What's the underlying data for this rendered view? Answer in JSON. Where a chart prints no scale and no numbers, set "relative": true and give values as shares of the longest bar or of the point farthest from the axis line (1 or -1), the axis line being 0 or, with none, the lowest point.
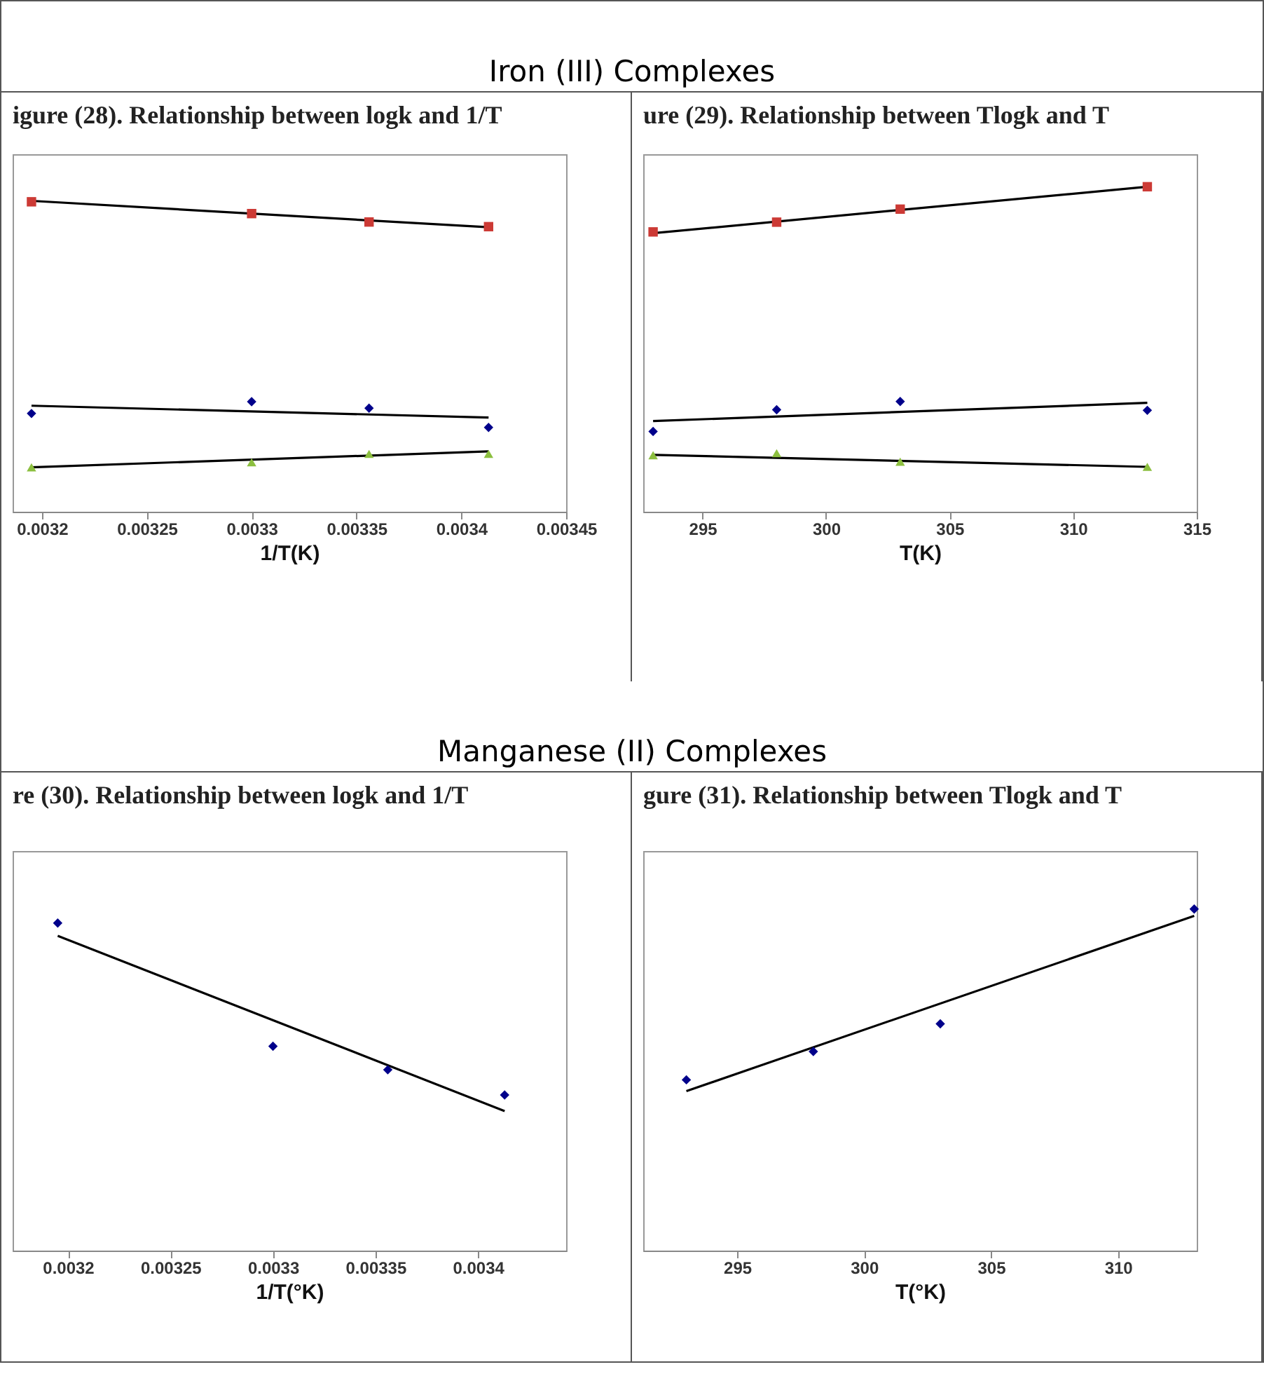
{
  "chart_data": [
    {
      "type": "scatter",
      "title": "igure (28). Relationship between logk and 1/T",
      "annotations": [
        "Iron (III) Complexes"
      ],
      "xlabel": "1/T(K)",
      "relative": true,
      "xlim": [
        0.003186,
        0.00345
      ],
      "xticks": [
        0.0032,
        0.00325,
        0.0033,
        0.00335,
        0.0034,
        0.00345
      ],
      "x": [
        0.003195,
        0.0033,
        0.003356,
        0.003413
      ],
      "series": [
        {
          "marker": "square",
          "color": "#cc3a35",
          "values": [
            0.997,
            0.959,
            0.932,
            0.917
          ]
        },
        {
          "marker": "diamond",
          "color": "#00008b",
          "values": [
            0.316,
            0.354,
            0.333,
            0.271
          ]
        },
        {
          "marker": "triangle",
          "color": "#8cbf3f",
          "values": [
            0.143,
            0.159,
            0.186,
            0.186
          ]
        },
        {
          "type": "line",
          "color": "#000000",
          "x": [
            0.003195,
            0.003413
          ],
          "values": [
            1,
            0.915
          ]
        },
        {
          "type": "line",
          "color": "#000000",
          "x": [
            0.003195,
            0.003413
          ],
          "values": [
            0.341,
            0.303
          ]
        },
        {
          "type": "line",
          "color": "#000000",
          "x": [
            0.003195,
            0.003413
          ],
          "values": [
            0.143,
            0.194
          ]
        }
      ]
    },
    {
      "type": "scatter",
      "title": "ure (29). Relationship between Tlogk and T",
      "xlabel": "T(K)",
      "relative": true,
      "xlim": [
        292.6,
        315
      ],
      "xticks": [
        295,
        300,
        305,
        310,
        315
      ],
      "x": [
        293,
        298,
        303,
        313
      ],
      "series": [
        {
          "marker": "square",
          "color": "#cc3a35",
          "values": [
            0.861,
            0.891,
            0.931,
            1
          ]
        },
        {
          "marker": "diamond",
          "color": "#00008b",
          "values": [
            0.247,
            0.314,
            0.339,
            0.312
          ]
        },
        {
          "marker": "triangle",
          "color": "#8cbf3f",
          "values": [
            0.174,
            0.18,
            0.154,
            0.138
          ]
        },
        {
          "type": "line",
          "color": "#000000",
          "x": [
            293,
            313
          ],
          "values": [
            0.857,
            1.0
          ]
        },
        {
          "type": "line",
          "color": "#000000",
          "x": [
            293,
            313
          ],
          "values": [
            0.279,
            0.335
          ]
        },
        {
          "type": "line",
          "color": "#000000",
          "x": [
            293,
            313
          ],
          "values": [
            0.175,
            0.138
          ]
        }
      ]
    },
    {
      "type": "scatter",
      "title": "re (30). Relationship between logk and 1/T",
      "annotations": [
        "Manganese (II) Complexes"
      ],
      "xlabel": "1/T(°K)",
      "relative": true,
      "xlim": [
        0.003173,
        0.003443
      ],
      "xticks": [
        0.0032,
        0.00325,
        0.0033,
        0.00335,
        0.0034
      ],
      "x": [
        0.003195,
        0.0033,
        0.003356,
        0.003413
      ],
      "series": [
        {
          "marker": "diamond",
          "color": "#00008b",
          "values": [
            1,
            0.624,
            0.552,
            0.475
          ]
        },
        {
          "type": "line",
          "color": "#000000",
          "x": [
            0.003195,
            0.003413
          ],
          "values": [
            0.961,
            0.426
          ]
        }
      ]
    },
    {
      "type": "scatter",
      "title": "gure (31). Relationship between Tlogk and T",
      "xlabel": "T(°K)",
      "relative": true,
      "xlim": [
        291.3,
        313.1
      ],
      "xticks": [
        295,
        300,
        305,
        310
      ],
      "x": [
        293,
        298,
        303,
        313
      ],
      "series": [
        {
          "marker": "diamond",
          "color": "#00008b",
          "values": [
            0.5,
            0.583,
            0.664,
            1
          ]
        },
        {
          "type": "line",
          "color": "#000000",
          "x": [
            293,
            313
          ],
          "values": [
            0.467,
            0.98
          ]
        }
      ]
    }
  ]
}
